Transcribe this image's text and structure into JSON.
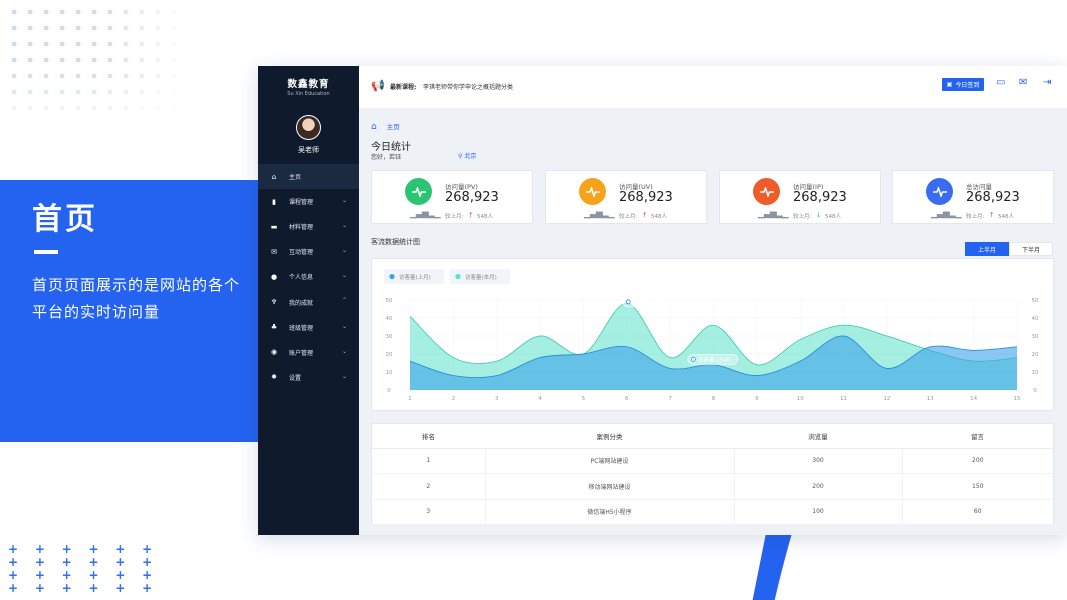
{
  "intro": {
    "title": "首页",
    "description": "首页页面展示的是网站的各个平台的实时访问量"
  },
  "decor": {
    "pluses": "+ + + + + +\n+ + + + + +\n+ + + + + +\n+ + + + + +"
  },
  "brand": {
    "title": "数鑫教育",
    "subtitle": "Su Xin Education"
  },
  "user": {
    "name": "吴老师"
  },
  "sidebar": {
    "items": [
      {
        "label": "主页",
        "icon": "home-icon",
        "glyph": "⌂",
        "chevron": "",
        "active": true
      },
      {
        "label": "课程管理",
        "icon": "course-icon",
        "glyph": "▮",
        "chevron": "⌄"
      },
      {
        "label": "材料管理",
        "icon": "book-icon",
        "glyph": "▬",
        "chevron": "⌄"
      },
      {
        "label": "互动管理",
        "icon": "chat-icon",
        "glyph": "✉",
        "chevron": "⌄"
      },
      {
        "label": "个人信息",
        "icon": "user-icon",
        "glyph": "●",
        "chevron": "⌄"
      },
      {
        "label": "我的成就",
        "icon": "trophy-icon",
        "glyph": "♆",
        "chevron": "⌃"
      },
      {
        "label": "班级管理",
        "icon": "group-icon",
        "glyph": "♣",
        "chevron": "⌄"
      },
      {
        "label": "账户管理",
        "icon": "account-icon",
        "glyph": "◉",
        "chevron": "⌄"
      },
      {
        "label": "设置",
        "icon": "gear-icon",
        "glyph": "✹",
        "chevron": "⌄"
      }
    ]
  },
  "topbar": {
    "notice_label": "最新课程:",
    "notice_text": "李琪老师带你学申论之概括题分类",
    "today_button": "今日签到",
    "icons": {
      "megaphone": "📢",
      "monitor": "▭",
      "mail": "✉",
      "logout": "⇥"
    }
  },
  "breadcrumb": {
    "home_glyph": "⌂",
    "label": "主页"
  },
  "page": {
    "title": "今日统计",
    "greeting": "您好，若钰",
    "location": "北京",
    "location_glyph": "⚲"
  },
  "stats": [
    {
      "label": "访问量(PV)",
      "value": "268,923",
      "compare_label": "较上月:",
      "trend": "up",
      "trend_glyph": "↑",
      "delta": "548人",
      "color": "#2cc472",
      "bars": "▁▃▅▂▁"
    },
    {
      "label": "访问量(UV)",
      "value": "268,923",
      "compare_label": "较上月:",
      "trend": "up",
      "trend_glyph": "↑",
      "delta": "548人",
      "color": "#f6a21b",
      "bars": "▁▃▅▂▁"
    },
    {
      "label": "访问量(IP)",
      "value": "268,923",
      "compare_label": "较上月:",
      "trend": "down",
      "trend_glyph": "↓",
      "delta": "548人",
      "color": "#ef5b2a",
      "bars": "▁▃▅▂▁"
    },
    {
      "label": "总访问量",
      "value": "268,923",
      "compare_label": "较上月:",
      "trend": "up",
      "trend_glyph": "↑",
      "delta": "548人",
      "color": "#3a6cf2",
      "bars": "▁▃▅▂▁"
    }
  ],
  "chart_section": {
    "title": "客流数据统计图",
    "tabs": [
      "上半月",
      "下半月"
    ],
    "active_tab": 0
  },
  "chart_data": {
    "type": "area",
    "x": [
      1,
      2,
      3,
      4,
      5,
      6,
      7,
      8,
      9,
      10,
      11,
      12,
      13,
      14,
      15
    ],
    "ylim": [
      0,
      50
    ],
    "yticks": [
      0,
      10,
      20,
      30,
      40,
      50
    ],
    "grid": true,
    "legend_position": "top-left",
    "series": [
      {
        "name": "访客量(上月)",
        "color": "#3aa3ea",
        "values": [
          16,
          8,
          8,
          18,
          20,
          24,
          12,
          14,
          8,
          16,
          30,
          12,
          24,
          22,
          24
        ]
      },
      {
        "name": "访客量(本月)",
        "color": "#5be2cb",
        "values": [
          41,
          18,
          16,
          30,
          20,
          48,
          18,
          36,
          14,
          28,
          36,
          30,
          22,
          16,
          18
        ]
      }
    ],
    "annotations": [
      {
        "label": "浏览量:2540",
        "x": 6,
        "y": 49
      },
      {
        "label": "浏览量:2540",
        "x": 7.5,
        "y": 17
      }
    ]
  },
  "table": {
    "headers": [
      "排名",
      "案例分类",
      "浏览量",
      "留言"
    ],
    "rows": [
      [
        "1",
        "PC端网站建设",
        "300",
        "200"
      ],
      [
        "2",
        "移动端网站建设",
        "200",
        "150"
      ],
      [
        "3",
        "微信端H5小程序",
        "100",
        "60"
      ]
    ]
  }
}
